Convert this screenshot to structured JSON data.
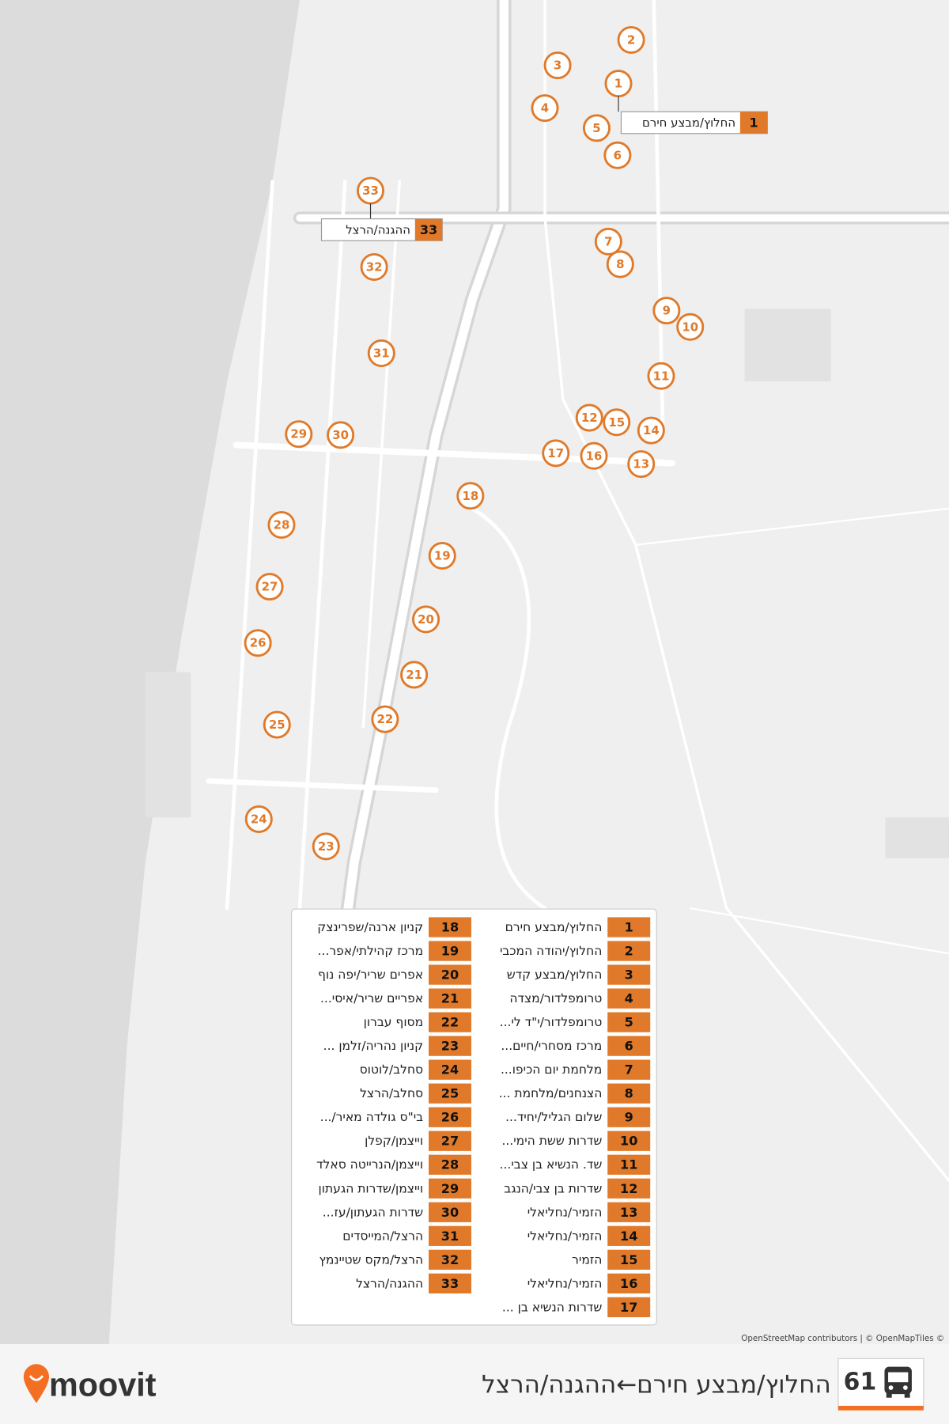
{
  "route": {
    "number": 61,
    "title": "החלוץ/מבצע חירם←ההגנה/הרצל"
  },
  "brand": "moovit",
  "attribution": "OpenStreetMap contributors | © OpenMapTiles ©",
  "callouts": [
    {
      "number": 1,
      "name": "החלוץ/מבצע חירם"
    },
    {
      "number": 33,
      "name": "ההגנה/הרצל"
    }
  ],
  "stops": [
    {
      "number": 1,
      "name": "החלוץ/מבצע חירם"
    },
    {
      "number": 2,
      "name": "החלוץ/יהודה המכבי"
    },
    {
      "number": 3,
      "name": "החלוץ/מבצע קדש"
    },
    {
      "number": 4,
      "name": "טרומפלדור/מצדה"
    },
    {
      "number": 5,
      "name": "טרומפלדור/י\"ד לי..."
    },
    {
      "number": 6,
      "name": "מרכז מסחרי/חיים..."
    },
    {
      "number": 7,
      "name": "מלחמת יום הכיפו..."
    },
    {
      "number": 8,
      "name": "הצנחנים/מלחמת ..."
    },
    {
      "number": 9,
      "name": "שלום הגליל/יחיד..."
    },
    {
      "number": 10,
      "name": "שדרות ששת הימי..."
    },
    {
      "number": 11,
      "name": "שד. הנשיא בן צבי..."
    },
    {
      "number": 12,
      "name": "שדרות בן צבי/הנגב"
    },
    {
      "number": 13,
      "name": "הזמיר/נחליאלי"
    },
    {
      "number": 14,
      "name": "הזמיר/נחליאלי"
    },
    {
      "number": 15,
      "name": "הזמיר"
    },
    {
      "number": 16,
      "name": "הזמיר/נחליאלי"
    },
    {
      "number": 17,
      "name": "שדרות הנשיא בן ..."
    },
    {
      "number": 18,
      "name": "קניון ארנה/שפרינצק"
    },
    {
      "number": 19,
      "name": "מרכז קהילתי/אפר..."
    },
    {
      "number": 20,
      "name": "אפרים שריר/יפה נוף"
    },
    {
      "number": 21,
      "name": "אפריים שריר/איסי..."
    },
    {
      "number": 22,
      "name": "מסוף עברון"
    },
    {
      "number": 23,
      "name": "קניון נהריה/זלמן ..."
    },
    {
      "number": 24,
      "name": "סחלב/לוטוס"
    },
    {
      "number": 25,
      "name": "סחלב/הרצל"
    },
    {
      "number": 26,
      "name": "בי\"ס גולדה מאיר/..."
    },
    {
      "number": 27,
      "name": "וייצמן/קפלן"
    },
    {
      "number": 28,
      "name": "וייצמן/הנרייטה סאלד"
    },
    {
      "number": 29,
      "name": "וייצמן/שדרות הגעתון"
    },
    {
      "number": 30,
      "name": "שדרות הגעתון/עז..."
    },
    {
      "number": 31,
      "name": "הרצל/המייסדים"
    },
    {
      "number": 32,
      "name": "הרצל/מקס שטיינמץ"
    },
    {
      "number": 33,
      "name": "ההגנה/הרצל"
    }
  ]
}
